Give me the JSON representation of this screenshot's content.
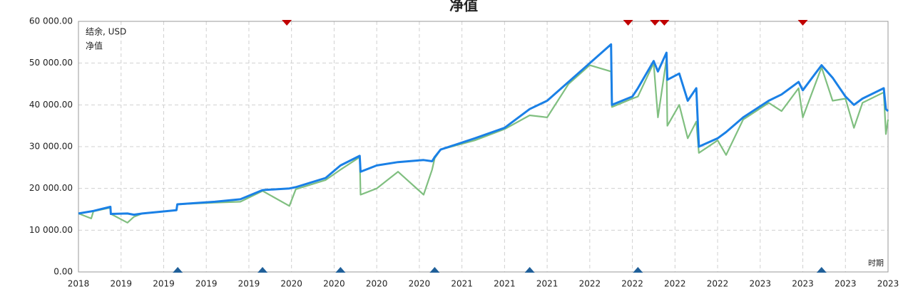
{
  "chart_data": {
    "type": "line",
    "title": "净值",
    "xlabel": "时期",
    "xlim": [
      0,
      19
    ],
    "xticks": [
      {
        "value": 0,
        "label": "2018"
      },
      {
        "value": 1,
        "label": "2019"
      },
      {
        "value": 2,
        "label": "2019"
      },
      {
        "value": 3,
        "label": "2019"
      },
      {
        "value": 4,
        "label": "2019"
      },
      {
        "value": 5,
        "label": "2020"
      },
      {
        "value": 6,
        "label": "2020"
      },
      {
        "value": 7,
        "label": "2020"
      },
      {
        "value": 8,
        "label": "2020"
      },
      {
        "value": 9,
        "label": "2021"
      },
      {
        "value": 10,
        "label": "2021"
      },
      {
        "value": 11,
        "label": "2021"
      },
      {
        "value": 12,
        "label": "2022"
      },
      {
        "value": 13,
        "label": "2022"
      },
      {
        "value": 14,
        "label": "2022"
      },
      {
        "value": 15,
        "label": "2022"
      },
      {
        "value": 16,
        "label": "2023"
      },
      {
        "value": 17,
        "label": "2023"
      },
      {
        "value": 18,
        "label": "2023"
      },
      {
        "value": 19,
        "label": "2023"
      }
    ],
    "ylim": [
      0,
      60000
    ],
    "yticks": [
      {
        "value": 0,
        "label": "0.00"
      },
      {
        "value": 10000,
        "label": "10 000.00"
      },
      {
        "value": 20000,
        "label": "20 000.00"
      },
      {
        "value": 30000,
        "label": "30 000.00"
      },
      {
        "value": 40000,
        "label": "40 000.00"
      },
      {
        "value": 50000,
        "label": "50 000.00"
      },
      {
        "value": 60000,
        "label": "60 000.00"
      }
    ],
    "grid": true,
    "legend": "upper left",
    "x": [
      0,
      0.3,
      0.35,
      0.75,
      0.76,
      1.15,
      1.3,
      1.5,
      2.3,
      2.32,
      3.2,
      3.8,
      4.32,
      4.95,
      5.1,
      5.8,
      6.15,
      6.6,
      6.62,
      7.0,
      7.5,
      8.1,
      8.3,
      8.36,
      8.5,
      9.3,
      10,
      10.59,
      11,
      11.5,
      12,
      12.5,
      12.52,
      13.0,
      13.13,
      13.5,
      13.6,
      13.8,
      13.82,
      14.1,
      14.3,
      14.5,
      14.56,
      15.0,
      15.2,
      15.6,
      16.2,
      16.5,
      16.9,
      17.0,
      17.44,
      17.7,
      18.0,
      18.2,
      18.4,
      18.9,
      18.95,
      19.0
    ],
    "series": [
      {
        "name": "结余, USD",
        "color": "#1a80e6",
        "values": [
          14000,
          14500,
          14600,
          15600,
          13900,
          14000,
          13700,
          14000,
          14800,
          16200,
          16800,
          17400,
          19600,
          20000,
          20300,
          22500,
          25500,
          27800,
          24000,
          25500,
          26300,
          26800,
          26500,
          27500,
          29300,
          32000,
          34500,
          39000,
          41000,
          45500,
          50000,
          54500,
          40000,
          42000,
          44000,
          50500,
          48000,
          52500,
          46000,
          47500,
          41000,
          44000,
          30000,
          32000,
          33500,
          37000,
          41000,
          42500,
          45500,
          43500,
          49500,
          46500,
          42000,
          40000,
          41500,
          44000,
          39000,
          38500
        ]
      },
      {
        "name": "净值",
        "color": "#80bf80",
        "values": [
          14000,
          12800,
          14500,
          15400,
          13900,
          11800,
          13200,
          14000,
          14800,
          16200,
          16600,
          16800,
          19400,
          15800,
          19800,
          22000,
          24500,
          27500,
          18500,
          20000,
          24000,
          18500,
          24500,
          27200,
          29300,
          31500,
          34200,
          37500,
          37000,
          45000,
          49500,
          48000,
          39500,
          41500,
          42000,
          50000,
          37000,
          51000,
          35000,
          40000,
          32000,
          36000,
          28500,
          31500,
          28000,
          36500,
          40500,
          38500,
          44000,
          37000,
          49000,
          41000,
          41500,
          34500,
          40500,
          43000,
          33000,
          36500
        ]
      }
    ],
    "top_markers": {
      "color": "#c00000",
      "x": [
        4.89,
        12.9,
        13.53,
        13.75,
        17.0
      ]
    },
    "bottom_markers": {
      "color": "#1f5f99",
      "x": [
        2.33,
        4.32,
        6.15,
        8.36,
        10.59,
        13.13,
        17.44
      ]
    }
  }
}
